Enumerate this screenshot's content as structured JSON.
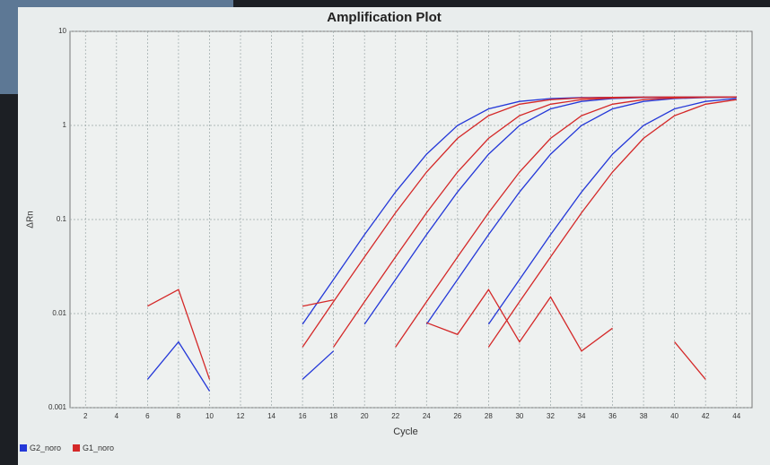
{
  "chart_data": {
    "type": "line",
    "title": "Amplification Plot",
    "x_label": "Cycle",
    "y_label": "ΔRn",
    "log_y": true,
    "grid": true,
    "legend": "bottom-left",
    "x": [
      2,
      4,
      6,
      8,
      10,
      12,
      14,
      16,
      18,
      20,
      22,
      24,
      26,
      28,
      30,
      32,
      34,
      36,
      38,
      40,
      42,
      44
    ],
    "xlim": [
      1,
      45
    ],
    "xticks": [
      2,
      4,
      6,
      8,
      10,
      12,
      14,
      16,
      18,
      20,
      22,
      24,
      26,
      28,
      30,
      32,
      34,
      36,
      38,
      40,
      42,
      44
    ],
    "ylim": [
      0.001,
      10
    ],
    "yticks": [
      0.001,
      0.01,
      0.1,
      1,
      10
    ],
    "series": [
      {
        "name": "G2_noro",
        "color": "#2438d8",
        "curves": [
          [
            null,
            null,
            null,
            null,
            null,
            null,
            null,
            0.0077,
            0.023,
            0.069,
            0.196,
            0.495,
            1.0,
            1.5,
            1.8,
            1.93,
            1.98,
            1.99,
            2.0,
            2.0,
            2.0,
            2.0
          ],
          [
            null,
            null,
            null,
            null,
            null,
            null,
            null,
            null,
            null,
            0.0077,
            0.023,
            0.069,
            0.196,
            0.495,
            1.0,
            1.5,
            1.8,
            1.93,
            1.98,
            1.99,
            2.0,
            2.0
          ],
          [
            null,
            null,
            null,
            null,
            null,
            null,
            null,
            null,
            null,
            null,
            null,
            0.0077,
            0.023,
            0.069,
            0.196,
            0.495,
            1.0,
            1.5,
            1.8,
            1.93,
            1.98,
            1.99
          ],
          [
            null,
            null,
            null,
            null,
            null,
            null,
            null,
            null,
            null,
            null,
            null,
            null,
            null,
            0.0077,
            0.023,
            0.069,
            0.196,
            0.495,
            1.0,
            1.5,
            1.8,
            1.93
          ],
          [
            null,
            null,
            0.002,
            0.005,
            0.0015,
            null,
            null,
            0.002,
            0.004,
            null,
            null,
            null,
            null,
            null,
            null,
            null,
            null,
            null,
            null,
            null,
            null,
            null
          ]
        ]
      },
      {
        "name": "G1_noro",
        "color": "#d42828",
        "curves": [
          [
            null,
            null,
            null,
            null,
            null,
            null,
            null,
            0.0044,
            0.0134,
            0.04,
            0.118,
            0.32,
            0.73,
            1.27,
            1.68,
            1.88,
            1.96,
            1.99,
            2.0,
            2.0,
            2.0,
            2.0
          ],
          [
            null,
            null,
            null,
            null,
            null,
            null,
            null,
            null,
            0.0044,
            0.0134,
            0.04,
            0.118,
            0.32,
            0.73,
            1.27,
            1.68,
            1.88,
            1.96,
            1.99,
            2.0,
            2.0,
            2.0
          ],
          [
            null,
            null,
            null,
            null,
            null,
            null,
            null,
            null,
            null,
            null,
            0.0044,
            0.0134,
            0.04,
            0.118,
            0.32,
            0.73,
            1.27,
            1.68,
            1.88,
            1.96,
            1.99,
            2.0
          ],
          [
            null,
            null,
            null,
            null,
            null,
            null,
            null,
            null,
            null,
            null,
            null,
            null,
            null,
            0.0044,
            0.0134,
            0.04,
            0.118,
            0.32,
            0.73,
            1.27,
            1.68,
            1.88
          ],
          [
            null,
            null,
            0.012,
            0.018,
            0.002,
            null,
            null,
            0.012,
            0.014,
            null,
            null,
            0.008,
            0.006,
            0.018,
            0.005,
            0.015,
            0.004,
            0.007,
            null,
            0.005,
            0.002,
            null
          ]
        ]
      }
    ]
  }
}
